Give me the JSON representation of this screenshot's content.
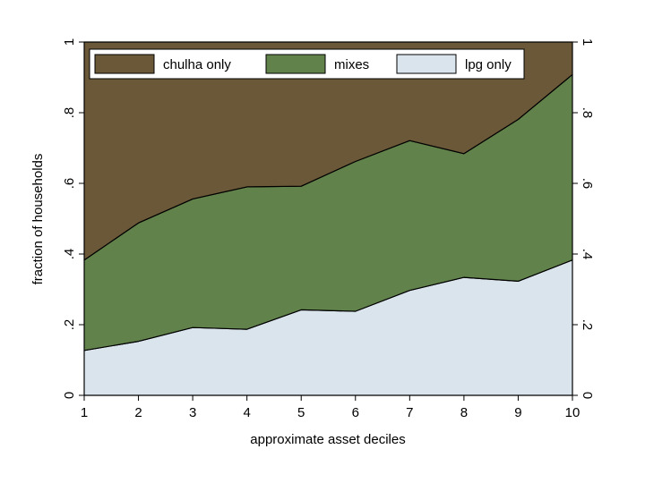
{
  "chart_data": {
    "type": "area",
    "stacked": true,
    "x": [
      1,
      2,
      3,
      4,
      5,
      6,
      7,
      8,
      9,
      10
    ],
    "xlabel": "approximate asset deciles",
    "ylabel": "fraction of households",
    "xlim": [
      1,
      10
    ],
    "ylim": [
      0,
      1
    ],
    "x_ticks": [
      "1",
      "2",
      "3",
      "4",
      "5",
      "6",
      "7",
      "8",
      "9",
      "10"
    ],
    "y_ticks": [
      {
        "value": 0,
        "label": "0"
      },
      {
        "value": 0.2,
        "label": ".2"
      },
      {
        "value": 0.4,
        "label": ".4"
      },
      {
        "value": 0.6,
        "label": ".6"
      },
      {
        "value": 0.8,
        "label": ".8"
      },
      {
        "value": 1,
        "label": "1"
      }
    ],
    "right_axis_mirrored": true,
    "grid": false,
    "legend_position": "top",
    "series": [
      {
        "name": "lpg only",
        "color": "#dae4ec",
        "values": [
          0.127,
          0.153,
          0.192,
          0.187,
          0.242,
          0.238,
          0.297,
          0.334,
          0.323,
          0.383
        ]
      },
      {
        "name": "mixes",
        "color": "#61824b",
        "values": [
          0.256,
          0.335,
          0.364,
          0.403,
          0.35,
          0.424,
          0.424,
          0.35,
          0.458,
          0.525
        ]
      },
      {
        "name": "chulha only",
        "color": "#6b5838",
        "values": [
          0.617,
          0.512,
          0.444,
          0.41,
          0.408,
          0.338,
          0.279,
          0.316,
          0.219,
          0.092
        ]
      }
    ],
    "legend_order": [
      "chulha only",
      "mixes",
      "lpg only"
    ]
  }
}
